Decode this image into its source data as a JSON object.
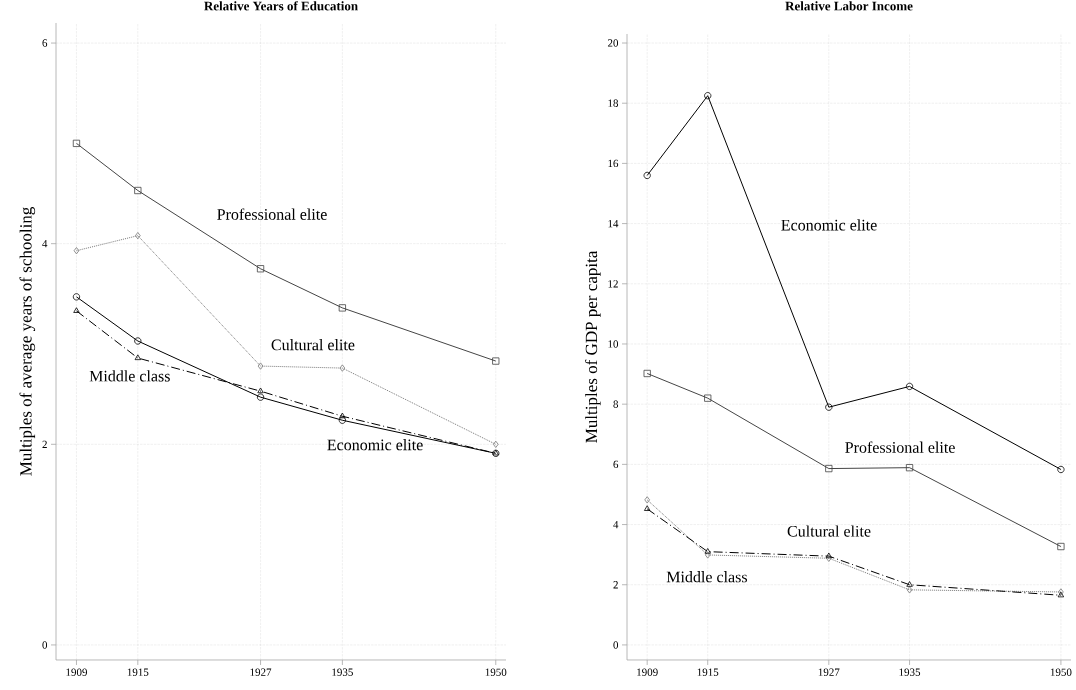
{
  "chart_data": [
    {
      "type": "line",
      "title": "Relative Years of Education",
      "ylabel": "Multiples of average years of schooling",
      "x": [
        1909,
        1915,
        1927,
        1935,
        1950
      ],
      "xlim": [
        1907,
        1951
      ],
      "ylim": [
        -0.15,
        6.2
      ],
      "xticks": [
        1909,
        1915,
        1927,
        1935,
        1950
      ],
      "yticks": [
        0,
        2,
        4,
        6
      ],
      "grid": true,
      "series": [
        {
          "name": "Economic elite",
          "color": "#000000",
          "marker": "circle",
          "line_style": "solid",
          "values": [
            3.47,
            3.03,
            2.47,
            2.24,
            1.91
          ]
        },
        {
          "name": "Professional elite",
          "color": "#444444",
          "marker": "square",
          "line_style": "solid",
          "values": [
            5.0,
            4.53,
            3.75,
            3.36,
            2.83
          ]
        },
        {
          "name": "Cultural elite",
          "color": "#777777",
          "marker": "diamond",
          "line_style": "dotted",
          "values": [
            3.93,
            4.08,
            2.78,
            2.76,
            2.0
          ]
        },
        {
          "name": "Middle class",
          "color": "#000000",
          "marker": "triangle",
          "line_style": "dashdot",
          "values": [
            3.33,
            2.86,
            2.53,
            2.28,
            1.91
          ]
        }
      ]
    },
    {
      "type": "line",
      "title": "Relative Labor Income",
      "ylabel": "Multiples of GDP per capita",
      "x": [
        1909,
        1915,
        1927,
        1935,
        1950
      ],
      "xlim": [
        1907,
        1951
      ],
      "ylim": [
        -0.5,
        20.3
      ],
      "xticks": [
        1909,
        1915,
        1927,
        1935,
        1950
      ],
      "yticks": [
        0,
        2,
        4,
        6,
        8,
        10,
        12,
        14,
        16,
        18,
        20
      ],
      "grid": true,
      "series": [
        {
          "name": "Economic elite",
          "color": "#000000",
          "marker": "circle",
          "line_style": "solid",
          "values": [
            15.6,
            18.25,
            7.9,
            8.59,
            5.83
          ]
        },
        {
          "name": "Professional elite",
          "color": "#444444",
          "marker": "square",
          "line_style": "solid",
          "values": [
            9.02,
            8.2,
            5.86,
            5.89,
            3.27
          ]
        },
        {
          "name": "Cultural elite",
          "color": "#777777",
          "marker": "diamond",
          "line_style": "dotted",
          "values": [
            4.82,
            2.99,
            2.88,
            1.83,
            1.76
          ]
        },
        {
          "name": "Middle class",
          "color": "#000000",
          "marker": "triangle",
          "line_style": "dashdot",
          "values": [
            4.52,
            3.1,
            2.95,
            2.0,
            1.65
          ]
        }
      ]
    }
  ]
}
